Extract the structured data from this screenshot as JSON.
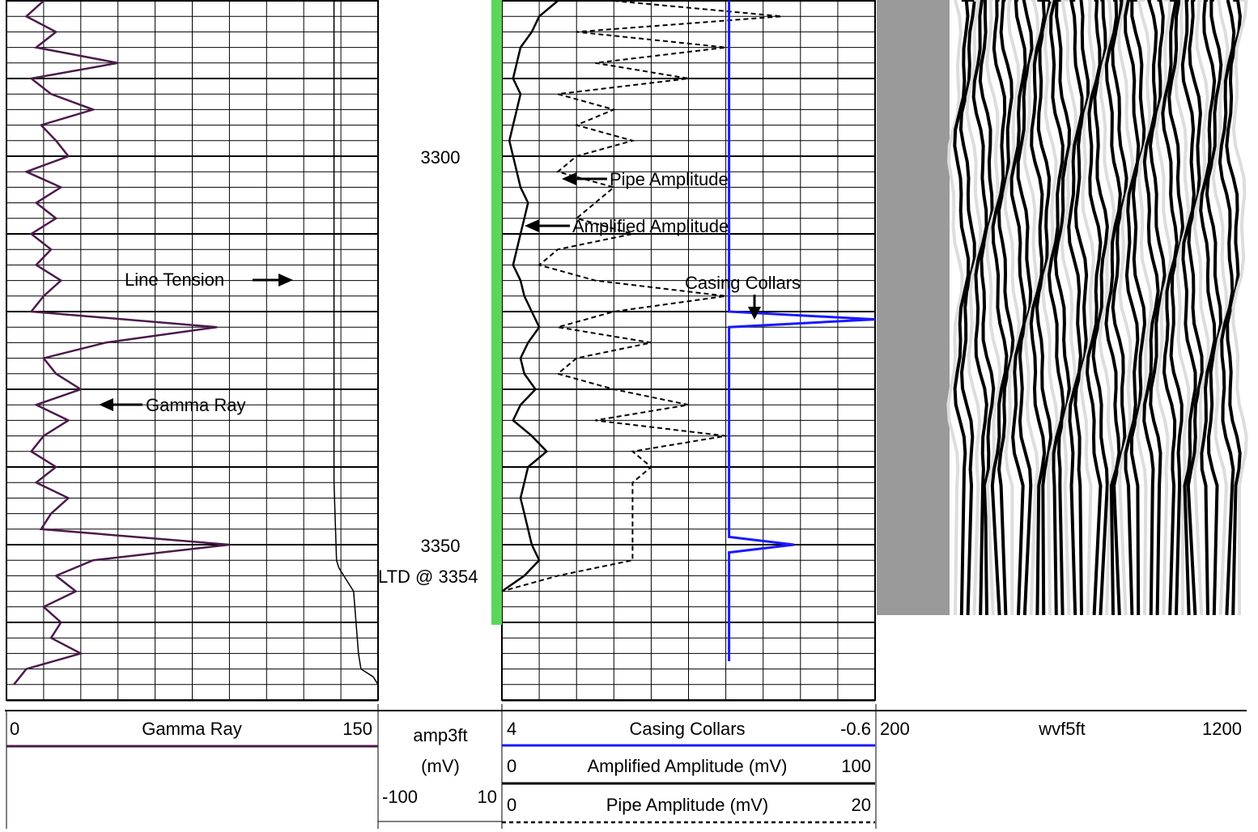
{
  "chart_data": {
    "type": "line",
    "depth_labels": [
      3300,
      3350
    ],
    "depth_range": [
      3280,
      3370
    ],
    "annotations": {
      "ltd": "LTD @ 3354",
      "line_tension": "Line Tension",
      "gamma_ray": "Gamma Ray",
      "pipe_amplitude": "Pipe Amplitude",
      "amplified_amplitude": "Amplified Amplitude",
      "casing_collars": "Casing Collars"
    },
    "tracks": [
      {
        "name": "Gamma Ray",
        "min": "0",
        "max": "150",
        "color": "#4b1a4b"
      },
      {
        "name": "amp3ft",
        "unit": "(mV)",
        "min": "-100",
        "max": "10"
      },
      {
        "name": "Casing Collars",
        "min": "4",
        "max": "-0.6",
        "color": "#1a1aff"
      },
      {
        "name": "Amplified Amplitude (mV)",
        "min": "0",
        "max": "100"
      },
      {
        "name": "Pipe Amplitude (mV)",
        "min": "0",
        "max": "20"
      },
      {
        "name": "wvf5ft",
        "min": "200",
        "max": "1200"
      }
    ],
    "series": [
      {
        "name": "Gamma Ray",
        "x": [
          3280,
          3282,
          3284,
          3286,
          3288,
          3290,
          3292,
          3294,
          3296,
          3298,
          3300,
          3302,
          3304,
          3306,
          3308,
          3310,
          3312,
          3314,
          3316,
          3318,
          3320,
          3322,
          3324,
          3326,
          3328,
          3330,
          3332,
          3334,
          3336,
          3338,
          3340,
          3342,
          3344,
          3346,
          3348,
          3350,
          3352,
          3354,
          3356,
          3358,
          3360,
          3362,
          3364,
          3366,
          3368
        ],
        "y": [
          15,
          8,
          20,
          12,
          45,
          10,
          18,
          35,
          14,
          20,
          25,
          8,
          22,
          12,
          20,
          10,
          18,
          12,
          22,
          15,
          10,
          85,
          40,
          15,
          20,
          30,
          12,
          25,
          15,
          10,
          20,
          12,
          25,
          18,
          14,
          90,
          35,
          20,
          28,
          15,
          22,
          18,
          30,
          8,
          3
        ]
      },
      {
        "name": "Line Tension",
        "x": [
          3280,
          3342,
          3352,
          3353,
          3354,
          3356,
          3360,
          3364,
          3366,
          3367,
          3368
        ],
        "y": [
          134,
          134,
          135,
          136,
          138,
          142,
          143,
          144,
          145,
          150,
          152
        ]
      },
      {
        "name": "Amplified Amplitude (mV)",
        "x": [
          3280,
          3282,
          3284,
          3286,
          3288,
          3290,
          3292,
          3294,
          3296,
          3298,
          3300,
          3302,
          3304,
          3306,
          3308,
          3310,
          3312,
          3314,
          3316,
          3318,
          3320,
          3322,
          3324,
          3326,
          3328,
          3330,
          3332,
          3334,
          3336,
          3338,
          3340,
          3342,
          3344,
          3346,
          3348,
          3350,
          3352,
          3354,
          3356
        ],
        "y": [
          15,
          10,
          8,
          5,
          4,
          3,
          5,
          4,
          3,
          2,
          3,
          4,
          5,
          7,
          6,
          5,
          4,
          3,
          5,
          6,
          8,
          10,
          7,
          5,
          6,
          9,
          5,
          3,
          8,
          12,
          7,
          6,
          5,
          6,
          7,
          8,
          10,
          6,
          0
        ]
      },
      {
        "name": "Pipe Amplitude (mV)",
        "x": [
          3280,
          3282,
          3284,
          3286,
          3288,
          3290,
          3292,
          3294,
          3296,
          3298,
          3300,
          3302,
          3304,
          3306,
          3308,
          3310,
          3312,
          3314,
          3316,
          3318,
          3320,
          3322,
          3324,
          3326,
          3328,
          3330,
          3332,
          3334,
          3336,
          3338,
          3340,
          3342,
          3344,
          3346,
          3348,
          3350,
          3352,
          3354,
          3356
        ],
        "y": [
          6,
          15,
          4,
          12,
          5,
          10,
          3,
          6,
          4,
          7,
          4,
          3,
          6,
          5,
          4,
          7,
          3,
          2,
          5,
          12,
          6,
          3,
          8,
          4,
          3,
          6,
          10,
          5,
          12,
          7,
          8,
          7,
          7,
          7,
          7,
          7,
          7,
          3,
          0
        ]
      },
      {
        "name": "Casing Collars",
        "x": [
          3280,
          3300,
          3320,
          3321,
          3322,
          3340,
          3349,
          3350,
          3351,
          3365
        ],
        "y": [
          1.2,
          1.2,
          1.2,
          -0.6,
          1.2,
          1.2,
          1.2,
          0.4,
          1.2,
          1.2
        ]
      }
    ]
  }
}
